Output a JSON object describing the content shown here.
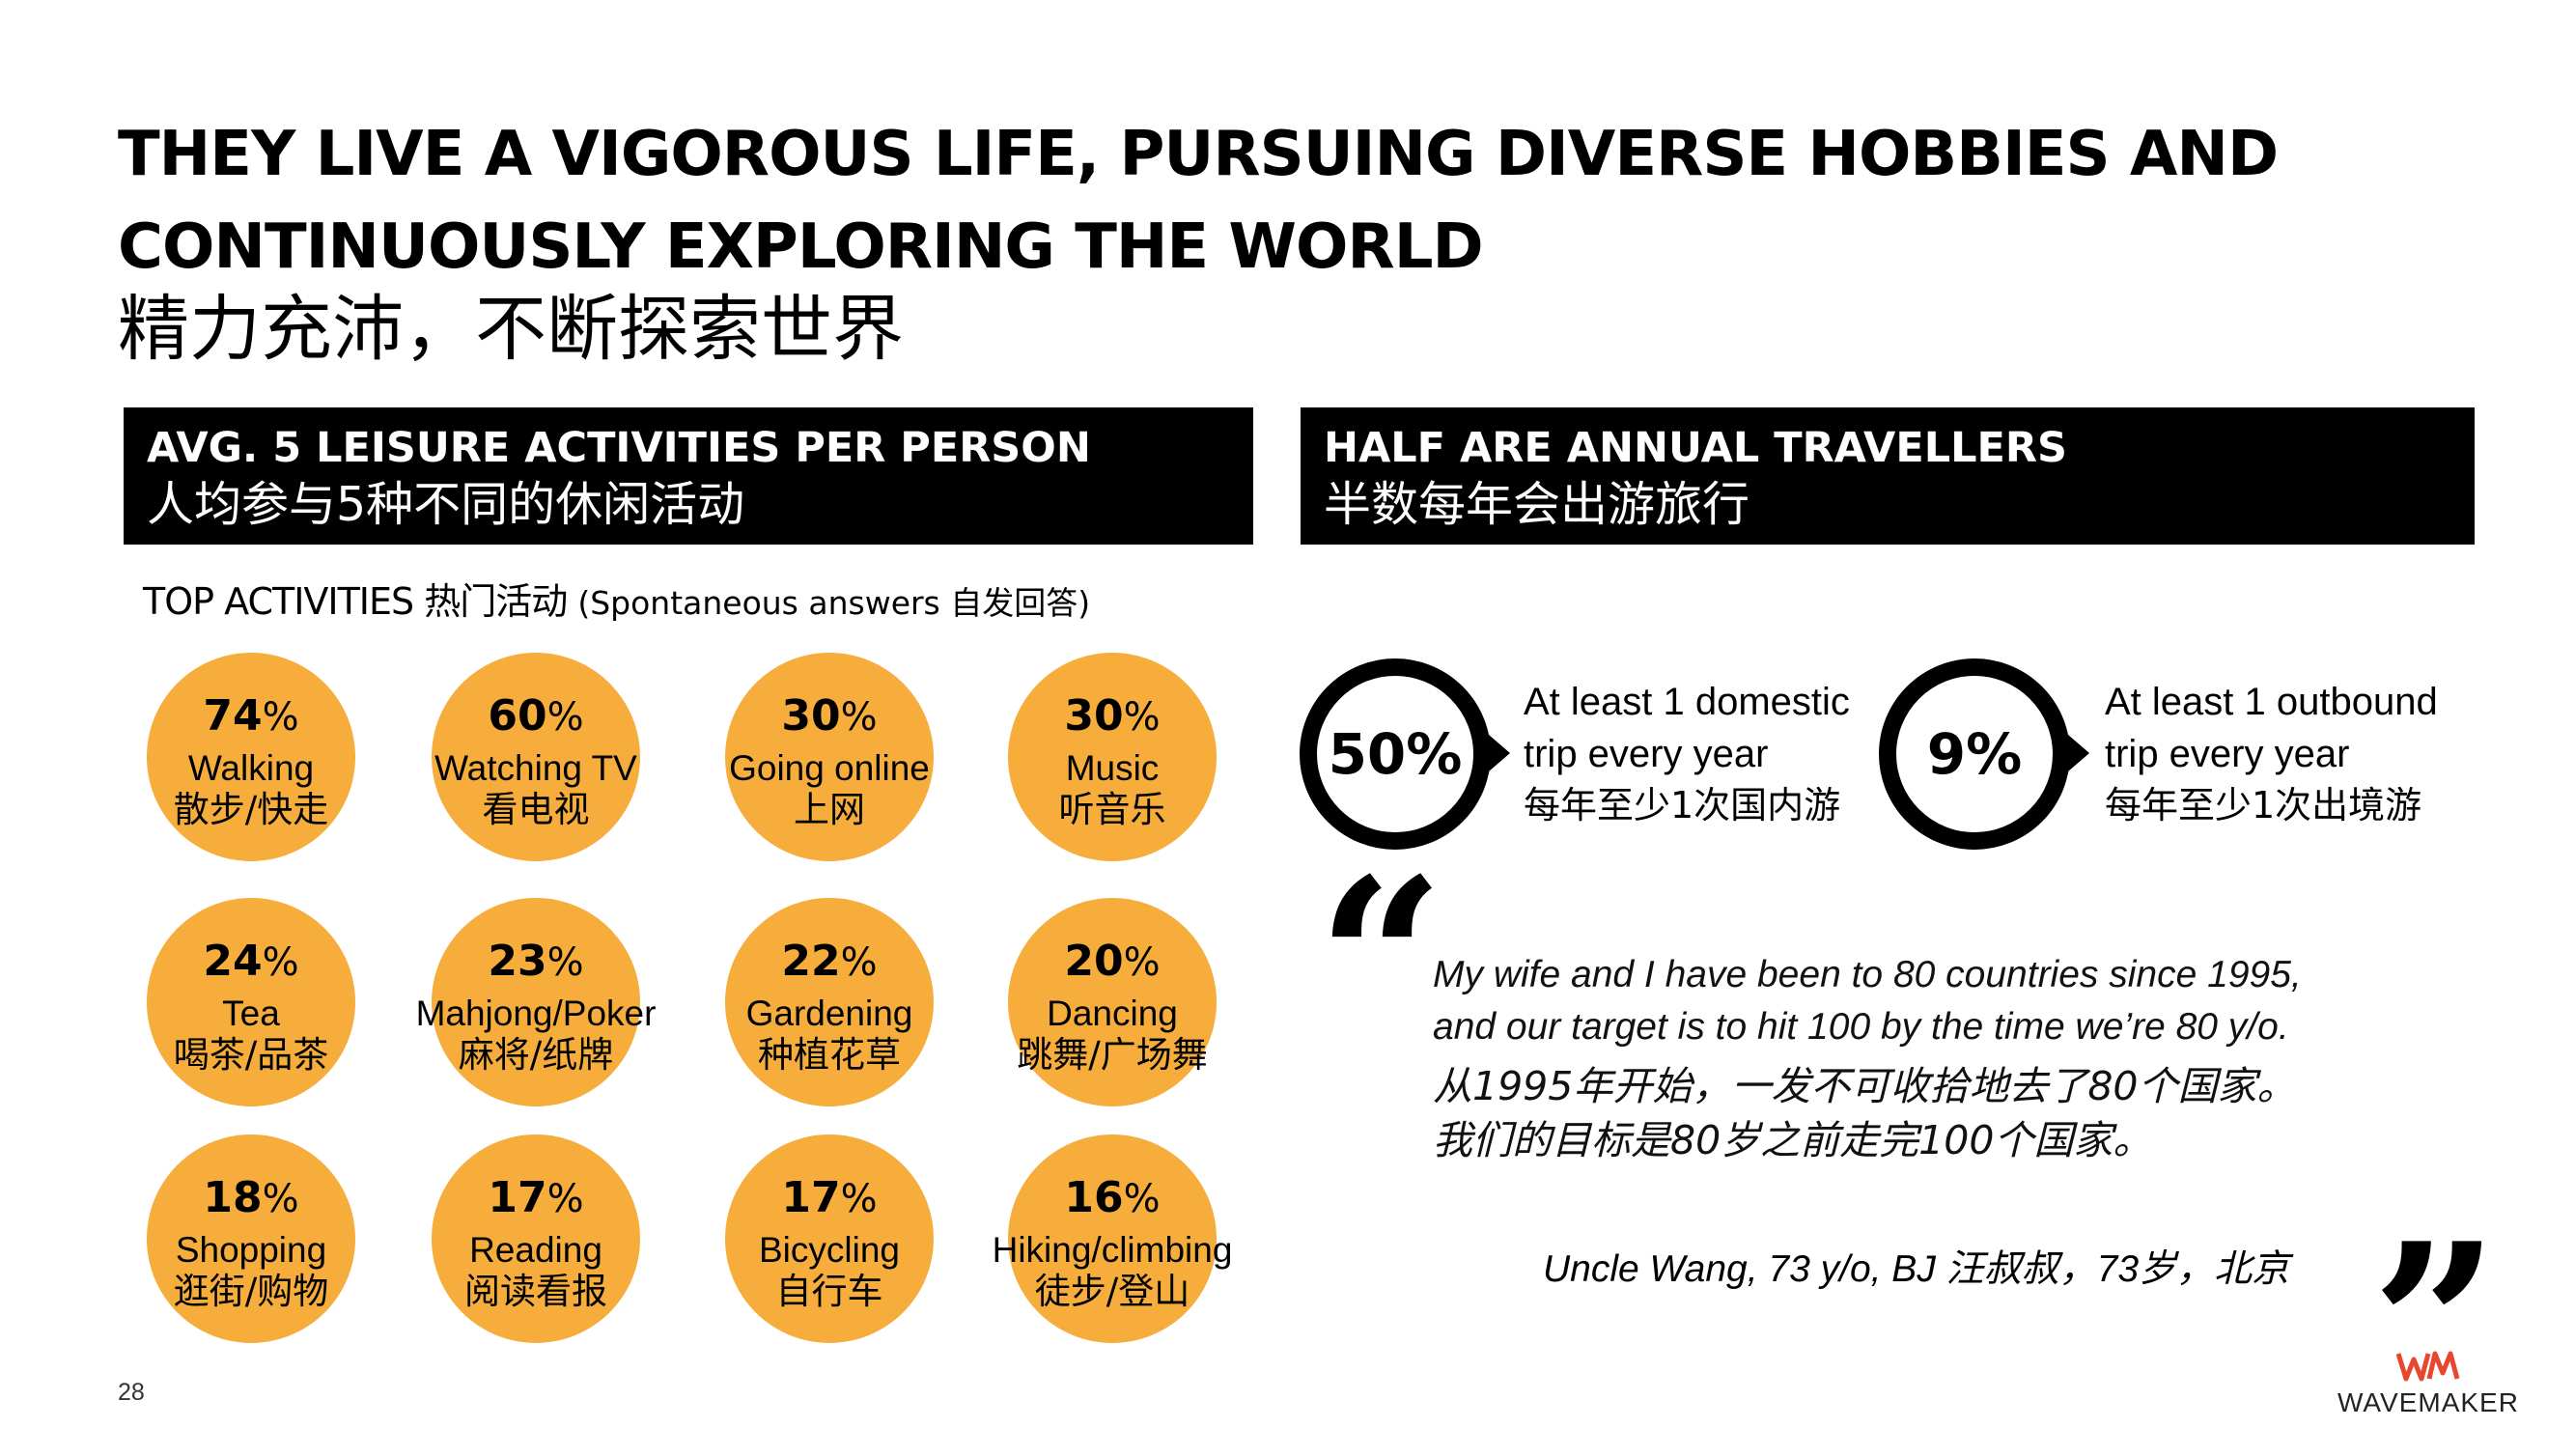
{
  "title": {
    "en_line1": "THEY LIVE A VIGOROUS LIFE, PURSUING DIVERSE HOBBIES AND",
    "en_line2": "CONTINUOUSLY EXPLORING THE WORLD",
    "cn": "精力充沛，不断探索世界"
  },
  "left_banner": {
    "en": "AVG. 5 LEISURE ACTIVITIES PER PERSON",
    "cn": "人均参与5种不同的休闲活动"
  },
  "right_banner": {
    "en": "HALF ARE ANNUAL TRAVELLERS",
    "cn": "半数每年会出游旅行"
  },
  "top_activities": {
    "label": "TOP ACTIVITIES 热门活动",
    "note": "(Spontaneous answers 自发回答)"
  },
  "activities": [
    {
      "value": "74",
      "unit": "%",
      "en": "Walking",
      "cn": "散步/快走"
    },
    {
      "value": "60",
      "unit": "%",
      "en": "Watching TV",
      "cn": "看电视"
    },
    {
      "value": "30",
      "unit": "%",
      "en": "Going online",
      "cn": "上网"
    },
    {
      "value": "30",
      "unit": "%",
      "en": "Music",
      "cn": "听音乐"
    },
    {
      "value": "24",
      "unit": "%",
      "en": "Tea",
      "cn": "喝茶/品茶"
    },
    {
      "value": "23",
      "unit": "%",
      "en": "Mahjong/Poker",
      "cn": "麻将/纸牌"
    },
    {
      "value": "22",
      "unit": "%",
      "en": "Gardening",
      "cn": "种植花草"
    },
    {
      "value": "20",
      "unit": "%",
      "en": "Dancing",
      "cn": "跳舞/广场舞"
    },
    {
      "value": "18",
      "unit": "%",
      "en": "Shopping",
      "cn": "逛街/购物"
    },
    {
      "value": "17",
      "unit": "%",
      "en": "Reading",
      "cn": "阅读看报"
    },
    {
      "value": "17",
      "unit": "%",
      "en": "Bicycling",
      "cn": "自行车"
    },
    {
      "value": "16",
      "unit": "%",
      "en": "Hiking/climbing",
      "cn": "徒步/登山"
    }
  ],
  "travel": [
    {
      "value": "50%",
      "line1": "At least 1 domestic",
      "line2": "trip every year",
      "cn": "每年至少1次国内游"
    },
    {
      "value": "9%",
      "line1": "At least 1 outbound",
      "line2": "trip every year",
      "cn": "每年至少1次出境游"
    }
  ],
  "quote": {
    "open_mark": "“",
    "close_mark": "”",
    "en_line1": "My wife and I have been to 80 countries since 1995,",
    "en_line2": "and our target is to hit 100 by the time we’re 80 y/o.",
    "cn_line1": "从1995年开始，一发不可收拾地去了80个国家。",
    "cn_line2": "我们的目标是80岁之前走完100个国家。",
    "attribution": "Uncle Wang, 73 y/o, BJ  汪叔叔，73岁，北京"
  },
  "page_number": "28",
  "logo": {
    "mark": "WM",
    "name": "WAVEMAKER",
    "accent_color": "#e8472f"
  },
  "colors": {
    "bubble": "#f6ad3b",
    "banner": "#000000"
  }
}
